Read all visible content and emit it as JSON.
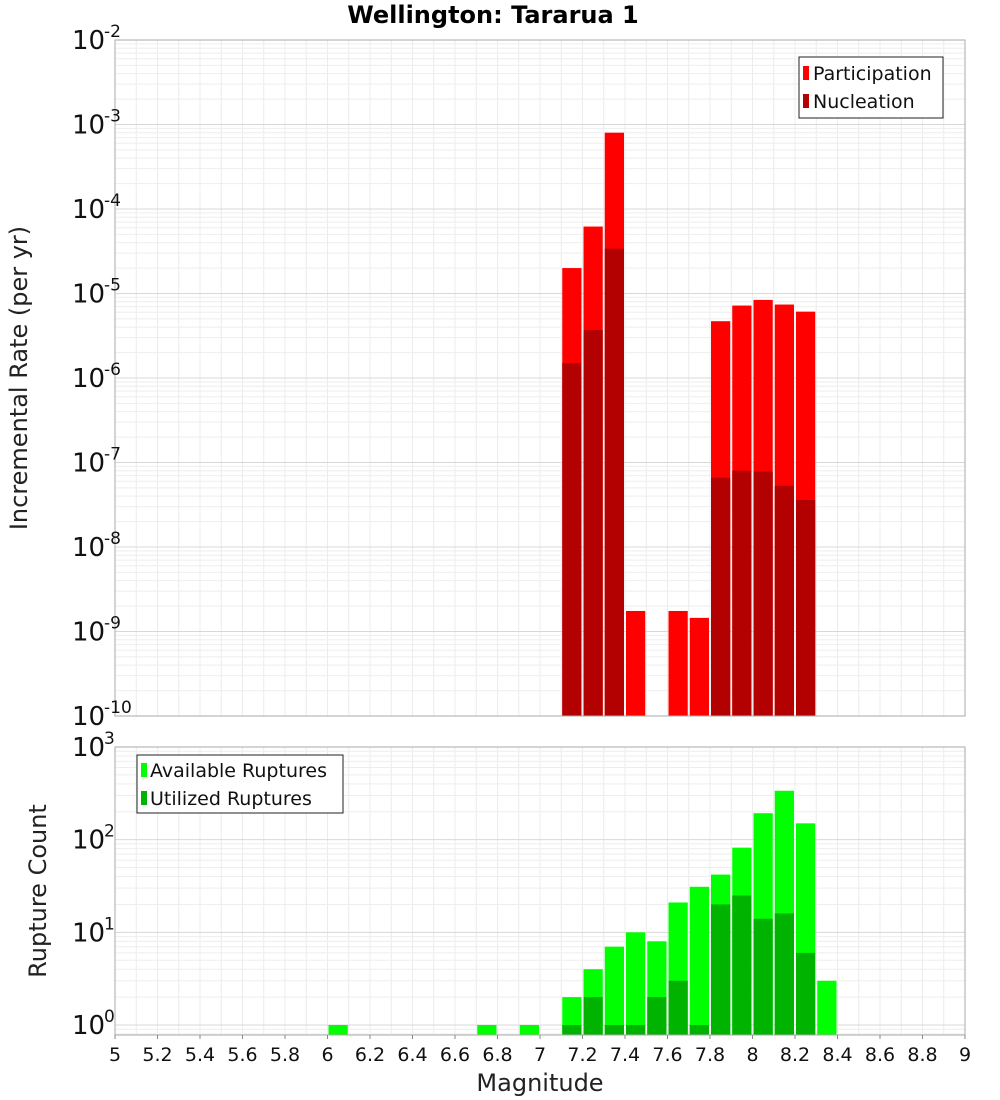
{
  "chart_data": [
    {
      "type": "bar",
      "title": "Wellington: Tararua 1",
      "xlabel": "",
      "ylabel": "Incremental Rate (per yr)",
      "ylog": true,
      "ylim": [
        1e-10,
        0.01
      ],
      "xlim": [
        5,
        9
      ],
      "y_tick_exponents": [
        -10,
        -9,
        -8,
        -7,
        -6,
        -5,
        -4,
        -3,
        -2
      ],
      "legend_position": "top-right",
      "grid": true,
      "bin_width": 0.1,
      "series": [
        {
          "name": "Participation",
          "color": "#ff0000",
          "x": [
            7.1,
            7.2,
            7.3,
            7.4,
            7.6,
            7.7,
            7.8,
            7.9,
            8.0,
            8.1,
            8.2
          ],
          "values": [
            2e-05,
            6.2e-05,
            0.0008,
            1.75e-09,
            1.75e-09,
            1.45e-09,
            4.7e-06,
            7.2e-06,
            8.4e-06,
            7.4e-06,
            6.1e-06
          ]
        },
        {
          "name": "Nucleation",
          "color": "#b30000",
          "x": [
            7.1,
            7.2,
            7.3,
            7.8,
            7.9,
            8.0,
            8.1,
            8.2
          ],
          "values": [
            1.5e-06,
            3.7e-06,
            3.4e-05,
            6.6e-08,
            8e-08,
            7.8e-08,
            5.3e-08,
            3.6e-08
          ]
        }
      ]
    },
    {
      "type": "bar",
      "xlabel": "Magnitude",
      "ylabel": "Rupture Count",
      "ylog": true,
      "ylim": [
        0.78,
        1000
      ],
      "xlim": [
        5,
        9
      ],
      "x_ticks": [
        "5",
        "5.2",
        "5.4",
        "5.6",
        "5.8",
        "6",
        "6.2",
        "6.4",
        "6.6",
        "6.8",
        "7",
        "7.2",
        "7.4",
        "7.6",
        "7.8",
        "8",
        "8.2",
        "8.4",
        "8.6",
        "8.8",
        "9"
      ],
      "y_tick_exponents": [
        0,
        1,
        2,
        3
      ],
      "legend_position": "top-left",
      "grid": true,
      "bin_width": 0.1,
      "series": [
        {
          "name": "Available Ruptures",
          "color": "#00ff00",
          "x": [
            6.0,
            6.7,
            6.9,
            7.1,
            7.2,
            7.3,
            7.4,
            7.5,
            7.6,
            7.7,
            7.8,
            7.9,
            8.0,
            8.1,
            8.2,
            8.3
          ],
          "values": [
            1,
            1,
            1,
            2,
            4,
            7,
            10,
            8,
            21,
            31,
            42,
            82,
            193,
            337,
            150,
            3
          ]
        },
        {
          "name": "Utilized Ruptures",
          "color": "#00b300",
          "x": [
            7.1,
            7.2,
            7.3,
            7.4,
            7.5,
            7.6,
            7.7,
            7.8,
            7.9,
            8.0,
            8.1,
            8.2
          ],
          "values": [
            1,
            2,
            1,
            1,
            2,
            3,
            1,
            20,
            25,
            14,
            16,
            6
          ]
        }
      ]
    }
  ]
}
